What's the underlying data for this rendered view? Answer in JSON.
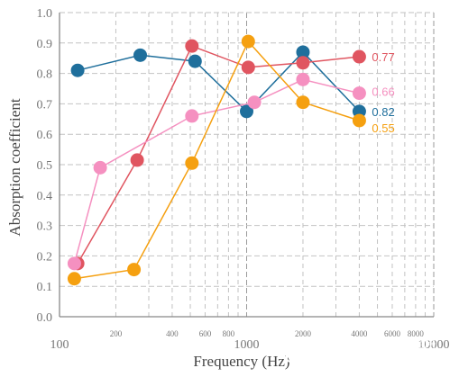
{
  "chart_data": {
    "type": "line",
    "title": "",
    "xlabel": "Frequency (Hz)",
    "ylabel": "Absorption coefficient",
    "x_scale": "log",
    "xlim": [
      100,
      10000
    ],
    "ylim": [
      0,
      1.0
    ],
    "grid": true,
    "y_ticks": [
      "0.0",
      "0.1",
      "0.2",
      "0.3",
      "0.4",
      "0.5",
      "0.6",
      "0.7",
      "0.8",
      "0.9",
      "1.0"
    ],
    "x_major_ticks": [
      {
        "value": 100,
        "label": "100"
      },
      {
        "value": 1000,
        "label": "1000"
      },
      {
        "value": 10000,
        "label": "10000"
      }
    ],
    "x_minor_ticks": [
      {
        "value": 200,
        "label": "200"
      },
      {
        "value": 400,
        "label": "400"
      },
      {
        "value": 600,
        "label": "600"
      },
      {
        "value": 800,
        "label": "800"
      },
      {
        "value": 2000,
        "label": "2000"
      },
      {
        "value": 4000,
        "label": "4000"
      },
      {
        "value": 6000,
        "label": "6000"
      },
      {
        "value": 8000,
        "label": "8000"
      }
    ],
    "series": [
      {
        "color": "#1f6f9c",
        "end_label": "0.82",
        "points": [
          [
            125,
            0.81
          ],
          [
            270,
            0.86
          ],
          [
            530,
            0.84
          ],
          [
            1000,
            0.675
          ],
          [
            2000,
            0.87
          ],
          [
            4000,
            0.675
          ]
        ]
      },
      {
        "color": "#e05560",
        "end_label": "0.77",
        "points": [
          [
            125,
            0.175
          ],
          [
            260,
            0.515
          ],
          [
            510,
            0.89
          ],
          [
            1020,
            0.82
          ],
          [
            2000,
            0.835
          ],
          [
            4000,
            0.855
          ]
        ]
      },
      {
        "color": "#f590c0",
        "end_label": "0.66",
        "points": [
          [
            120,
            0.175
          ],
          [
            165,
            0.49
          ],
          [
            510,
            0.66
          ],
          [
            1100,
            0.705
          ],
          [
            2000,
            0.78
          ],
          [
            4000,
            0.735
          ]
        ]
      },
      {
        "color": "#f5a010",
        "end_label": "0.55",
        "points": [
          [
            120,
            0.125
          ],
          [
            250,
            0.155
          ],
          [
            510,
            0.505
          ],
          [
            1020,
            0.905
          ],
          [
            2000,
            0.705
          ],
          [
            4000,
            0.645
          ]
        ]
      }
    ]
  },
  "watermark": {
    "logo_text": "HD",
    "main": "HD.Club 高清視頻所",
    "sub": "© 2014 www.HD.Club.tw"
  }
}
